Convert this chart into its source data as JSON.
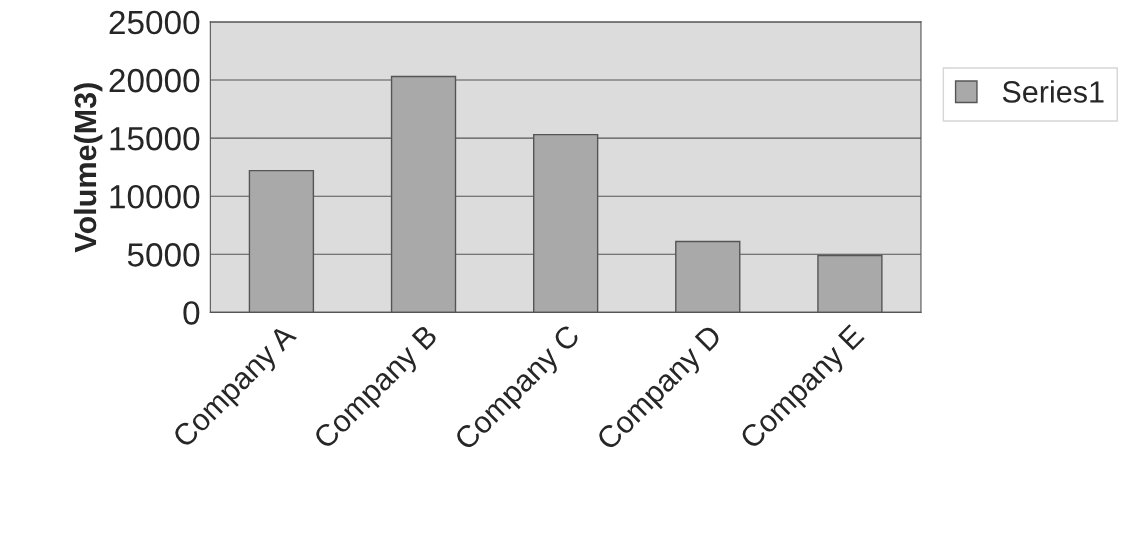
{
  "chart_data": {
    "type": "bar",
    "ylabel": "Volume(M3)",
    "categories": [
      "Company A",
      "Company B",
      "Company C",
      "Company D",
      "Company E"
    ],
    "series": [
      {
        "name": "Series1",
        "color": "#a9a9a9",
        "values": [
          12200,
          20300,
          15300,
          6100,
          4900
        ]
      }
    ],
    "ylim": [
      0,
      25000
    ],
    "yticks": [
      0,
      5000,
      10000,
      15000,
      20000,
      25000
    ],
    "grid": "y",
    "legend": "right"
  }
}
